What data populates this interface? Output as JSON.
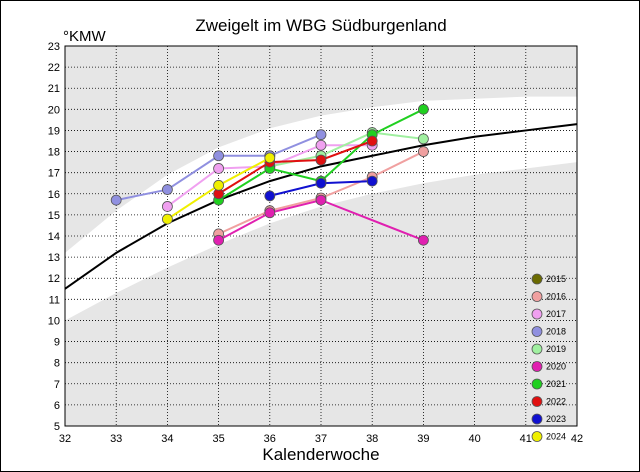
{
  "chart_data": {
    "type": "line",
    "title": "Zweigelt im WBG Südburgenland",
    "ylabel": "°KMW",
    "xlabel": "Kalenderwoche",
    "xlim": [
      32,
      42
    ],
    "ylim": [
      5,
      23
    ],
    "xticks": [
      32,
      33,
      34,
      35,
      36,
      37,
      38,
      39,
      40,
      41,
      42
    ],
    "yticks": [
      5,
      6,
      7,
      8,
      9,
      10,
      11,
      12,
      13,
      14,
      15,
      16,
      17,
      18,
      19,
      20,
      21,
      22,
      23
    ],
    "grid": "dotted",
    "legend_position": "bottom-right",
    "trend": {
      "x": [
        32,
        33,
        34,
        35,
        36,
        37,
        38,
        39,
        40,
        41,
        42
      ],
      "y": [
        11.5,
        13.2,
        14.6,
        15.7,
        16.6,
        17.3,
        17.8,
        18.3,
        18.7,
        19.0,
        19.3
      ]
    },
    "band": {
      "upper": {
        "x": [
          32,
          33,
          34,
          35,
          36,
          37,
          38,
          39,
          40,
          41,
          42
        ],
        "y": [
          13.2,
          15.2,
          16.9,
          18.2,
          19.1,
          19.7,
          20.1,
          20.4,
          20.5,
          20.6,
          20.6
        ]
      },
      "lower": {
        "x": [
          32,
          33,
          34,
          35,
          36,
          37,
          38,
          39,
          40,
          41,
          42
        ],
        "y": [
          10.0,
          11.3,
          12.5,
          13.6,
          14.6,
          15.4,
          16.0,
          16.5,
          16.9,
          17.2,
          17.5
        ]
      }
    },
    "series": [
      {
        "name": "2015",
        "color": "#6b6b00",
        "x": [
          36
        ],
        "y": [
          17.8
        ]
      },
      {
        "name": "2016",
        "color": "#f0a0a0",
        "x": [
          35,
          36,
          37,
          38,
          39
        ],
        "y": [
          14.1,
          15.2,
          15.8,
          16.8,
          18.0
        ]
      },
      {
        "name": "2017",
        "color": "#f0a0f0",
        "x": [
          34,
          35,
          36,
          37,
          38
        ],
        "y": [
          15.4,
          17.2,
          17.3,
          18.3,
          18.3
        ]
      },
      {
        "name": "2018",
        "color": "#9090e0",
        "x": [
          33,
          34,
          35,
          36,
          37
        ],
        "y": [
          15.7,
          16.2,
          17.8,
          17.8,
          18.8
        ]
      },
      {
        "name": "2019",
        "color": "#a0f0a0",
        "x": [
          36,
          37,
          38,
          39
        ],
        "y": [
          17.3,
          17.8,
          18.9,
          18.6
        ]
      },
      {
        "name": "2020",
        "color": "#e020b0",
        "x": [
          35,
          36,
          37,
          39
        ],
        "y": [
          13.8,
          15.1,
          15.7,
          13.8
        ]
      },
      {
        "name": "2021",
        "color": "#20d020",
        "x": [
          35,
          36,
          37,
          38,
          39
        ],
        "y": [
          15.7,
          17.2,
          16.6,
          18.8,
          20.0
        ]
      },
      {
        "name": "2022",
        "color": "#e01010",
        "x": [
          35,
          36,
          37,
          38
        ],
        "y": [
          16.0,
          17.5,
          17.6,
          18.5
        ]
      },
      {
        "name": "2023",
        "color": "#1010d0",
        "x": [
          36,
          37,
          38
        ],
        "y": [
          15.9,
          16.5,
          16.6
        ]
      },
      {
        "name": "2024",
        "color": "#f0f000",
        "x": [
          34,
          35,
          36
        ],
        "y": [
          14.8,
          16.4,
          17.7
        ]
      }
    ]
  }
}
